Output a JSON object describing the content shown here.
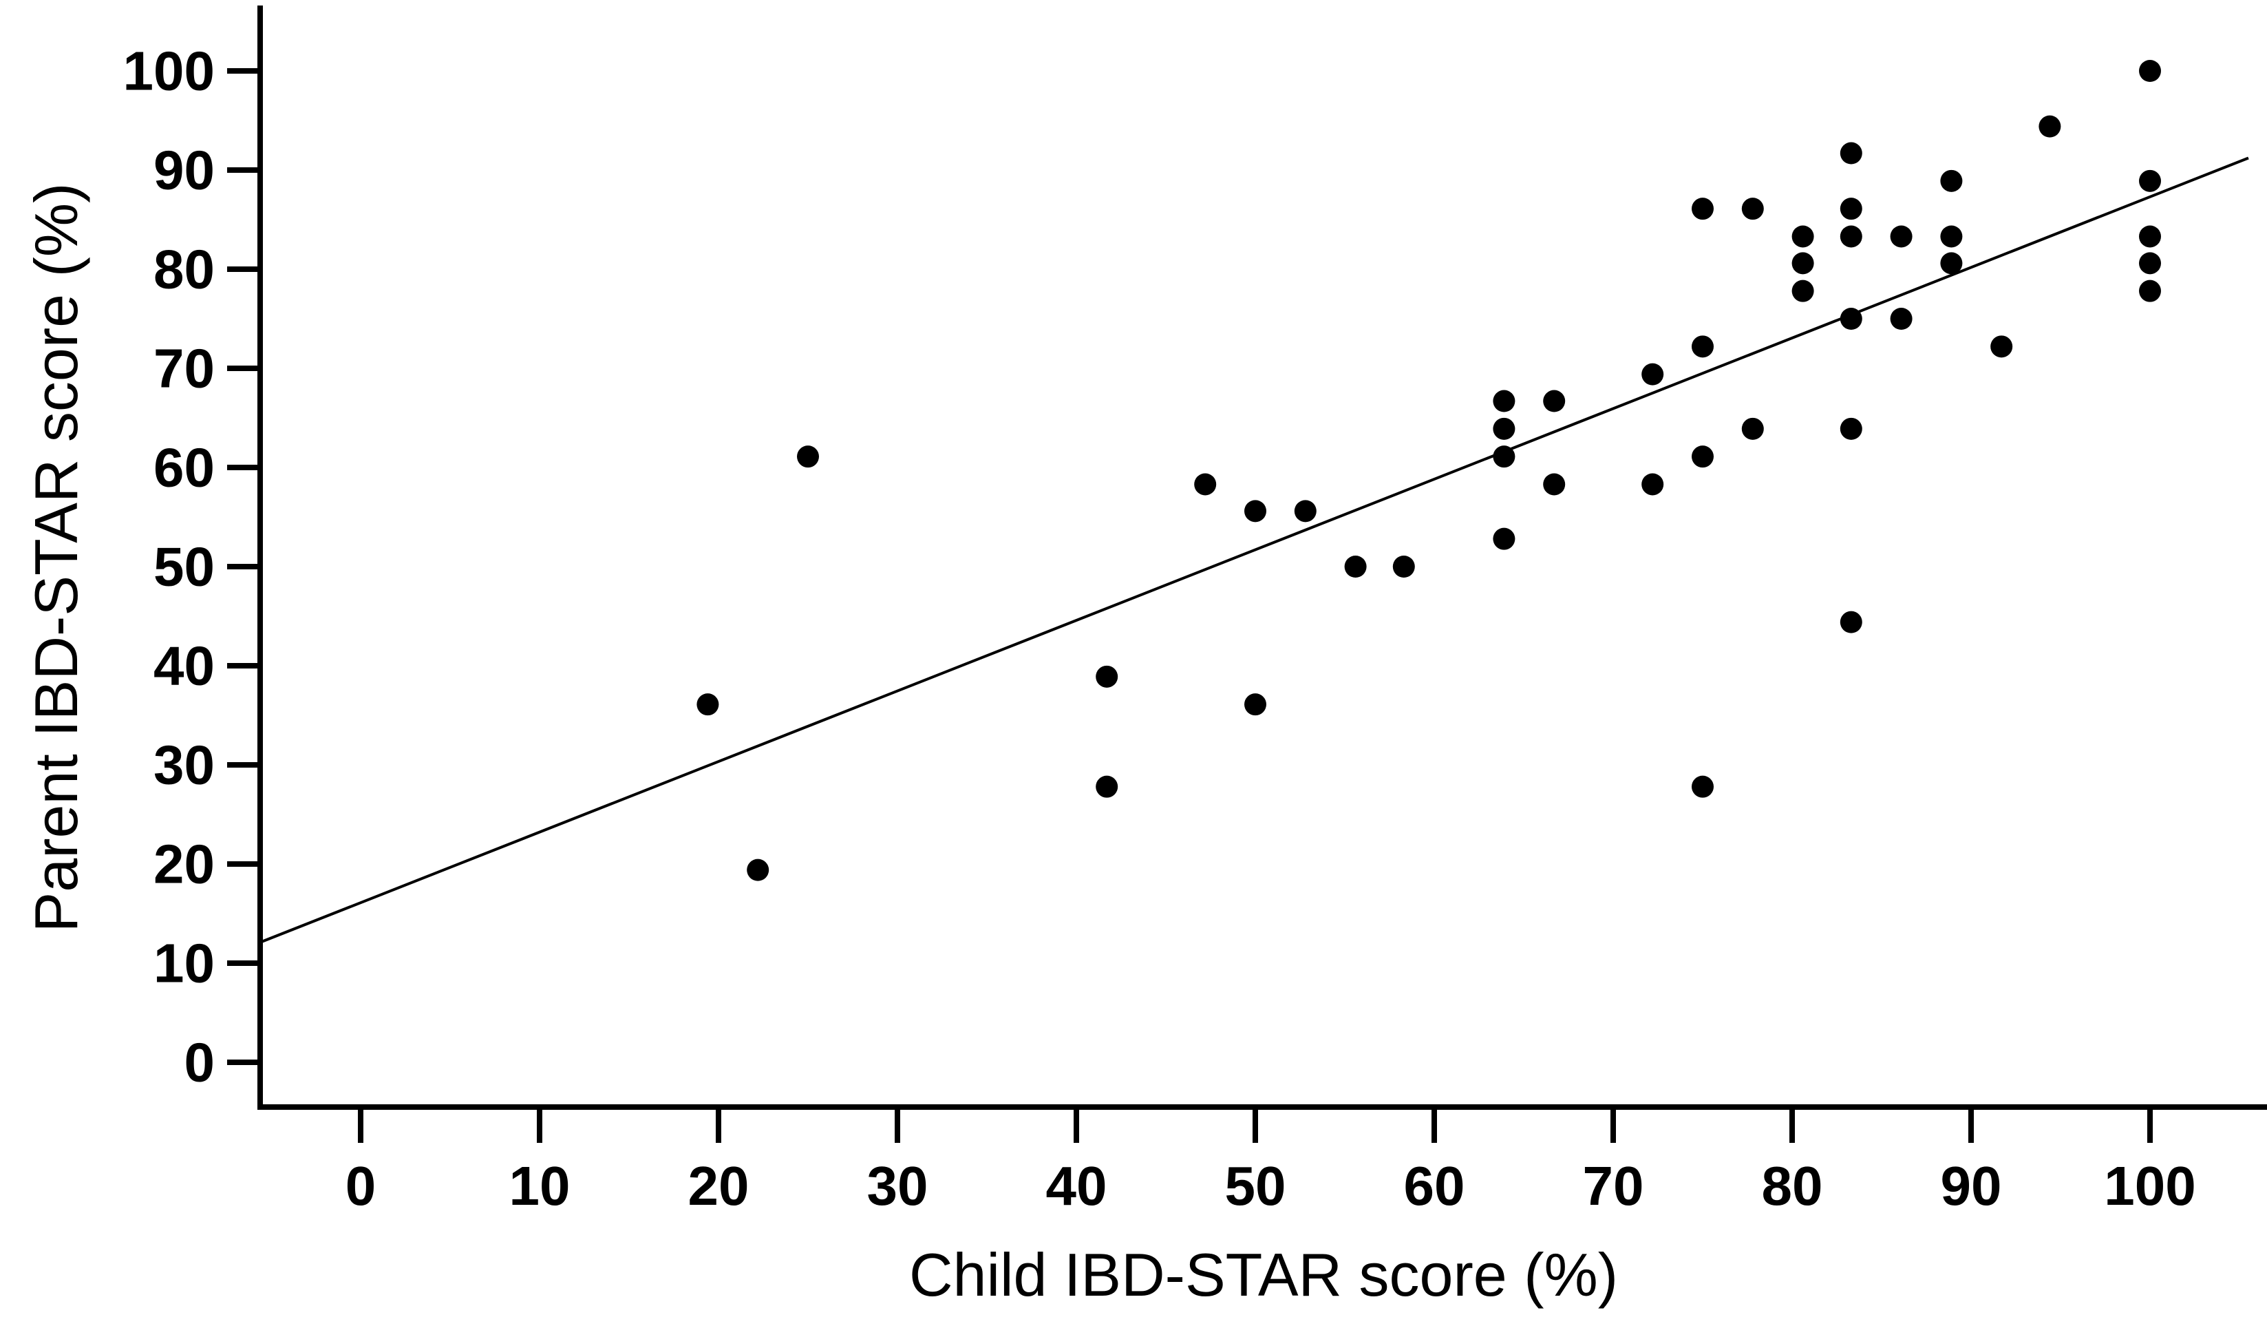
{
  "figure": {
    "background_color": "#ffffff",
    "ink_color": "#000000"
  },
  "chart_data": {
    "type": "scatter",
    "title": "",
    "xlabel": "Child IBD-STAR score (%)",
    "ylabel": "Parent IBD-STAR score (%)",
    "xlim": [
      -5.6,
      106.5
    ],
    "ylim": [
      -4.8,
      106.6
    ],
    "x_ticks": [
      0,
      10,
      20,
      30,
      40,
      50,
      60,
      70,
      80,
      90,
      100
    ],
    "y_ticks": [
      0,
      10,
      20,
      30,
      40,
      50,
      60,
      70,
      80,
      90,
      100
    ],
    "grid": false,
    "legend": false,
    "marker": {
      "shape": "circle",
      "color": "#000000",
      "radius_px": 16
    },
    "points": [
      {
        "x": 19.4,
        "y": 36.1
      },
      {
        "x": 22.2,
        "y": 19.4
      },
      {
        "x": 25.0,
        "y": 61.1
      },
      {
        "x": 41.7,
        "y": 38.9
      },
      {
        "x": 41.7,
        "y": 27.8
      },
      {
        "x": 47.2,
        "y": 58.3
      },
      {
        "x": 50.0,
        "y": 55.6
      },
      {
        "x": 50.0,
        "y": 36.1
      },
      {
        "x": 52.8,
        "y": 55.6
      },
      {
        "x": 55.6,
        "y": 50.0
      },
      {
        "x": 58.3,
        "y": 50.0
      },
      {
        "x": 63.9,
        "y": 66.7
      },
      {
        "x": 63.9,
        "y": 63.9
      },
      {
        "x": 63.9,
        "y": 61.1
      },
      {
        "x": 63.9,
        "y": 52.8
      },
      {
        "x": 66.7,
        "y": 66.7
      },
      {
        "x": 66.7,
        "y": 58.3
      },
      {
        "x": 72.2,
        "y": 69.4
      },
      {
        "x": 72.2,
        "y": 58.3
      },
      {
        "x": 75.0,
        "y": 86.1
      },
      {
        "x": 75.0,
        "y": 72.2
      },
      {
        "x": 75.0,
        "y": 61.1
      },
      {
        "x": 75.0,
        "y": 27.8
      },
      {
        "x": 77.8,
        "y": 86.1
      },
      {
        "x": 77.8,
        "y": 63.9
      },
      {
        "x": 80.6,
        "y": 83.3
      },
      {
        "x": 80.6,
        "y": 80.6
      },
      {
        "x": 80.6,
        "y": 77.8
      },
      {
        "x": 83.3,
        "y": 91.7
      },
      {
        "x": 83.3,
        "y": 86.1
      },
      {
        "x": 83.3,
        "y": 83.3
      },
      {
        "x": 83.3,
        "y": 75.0
      },
      {
        "x": 83.3,
        "y": 63.9
      },
      {
        "x": 83.3,
        "y": 44.4
      },
      {
        "x": 86.1,
        "y": 83.3
      },
      {
        "x": 86.1,
        "y": 75.0
      },
      {
        "x": 88.9,
        "y": 88.9
      },
      {
        "x": 88.9,
        "y": 83.3
      },
      {
        "x": 88.9,
        "y": 80.6
      },
      {
        "x": 91.7,
        "y": 72.2
      },
      {
        "x": 94.4,
        "y": 94.4
      },
      {
        "x": 100.0,
        "y": 100.0
      },
      {
        "x": 100.0,
        "y": 88.9
      },
      {
        "x": 100.0,
        "y": 83.3
      },
      {
        "x": 100.0,
        "y": 80.6
      },
      {
        "x": 100.0,
        "y": 77.8
      }
    ],
    "trend_line": {
      "slope": 0.712,
      "intercept": 16.1,
      "x_start": -5.6,
      "x_end": 105.5,
      "color": "#000000"
    }
  }
}
